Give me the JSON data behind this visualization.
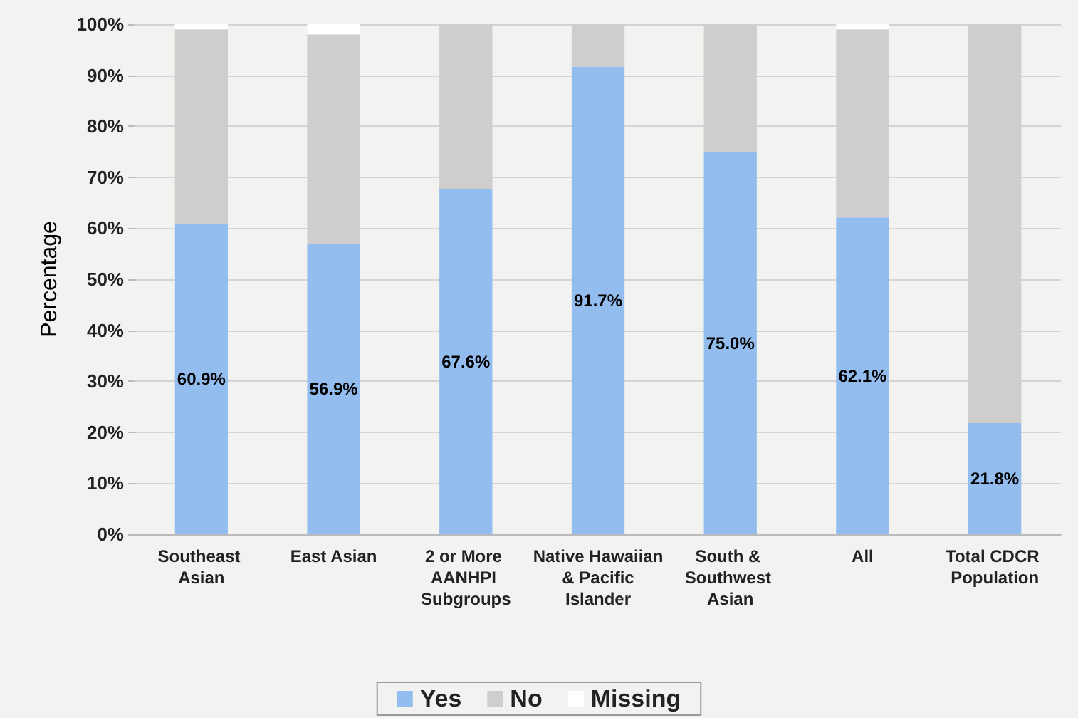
{
  "chart_data": {
    "type": "bar",
    "stacked": true,
    "ylabel": "Percentage",
    "categories": [
      "Southeast Asian",
      "East Asian",
      "2 or More AANHPI Subgroups",
      "Native Hawaiian & Pacific Islander",
      "South & Southwest Asian",
      "All",
      "Total CDCR Population"
    ],
    "series": [
      {
        "name": "Yes",
        "color": "#93bdee",
        "values": [
          60.9,
          56.9,
          67.6,
          91.7,
          75.0,
          62.1,
          21.8
        ],
        "value_labels": [
          "60.9%",
          "56.9%",
          "67.6%",
          "91.7%",
          "75.0%",
          "62.1%",
          "21.8%"
        ]
      },
      {
        "name": "No",
        "color": "#d0cecc",
        "values": [
          38.1,
          41.1,
          32.4,
          8.3,
          25.0,
          36.9,
          78.2
        ]
      },
      {
        "name": "Missing",
        "color": "#ffffff",
        "values": [
          1.0,
          2.0,
          0,
          0,
          0,
          1.0,
          0
        ]
      }
    ],
    "ylim": [
      0,
      100
    ],
    "yticks": [
      {
        "value": 0,
        "label": "0%"
      },
      {
        "value": 10,
        "label": "10%"
      },
      {
        "value": 20,
        "label": "20%"
      },
      {
        "value": 30,
        "label": "30%"
      },
      {
        "value": 40,
        "label": "40%"
      },
      {
        "value": 50,
        "label": "50%"
      },
      {
        "value": 60,
        "label": "60%"
      },
      {
        "value": 70,
        "label": "70%"
      },
      {
        "value": 80,
        "label": "80%"
      },
      {
        "value": 90,
        "label": "90%"
      },
      {
        "value": 100,
        "label": "100%"
      }
    ],
    "grid": "y",
    "legend": "bottom"
  }
}
